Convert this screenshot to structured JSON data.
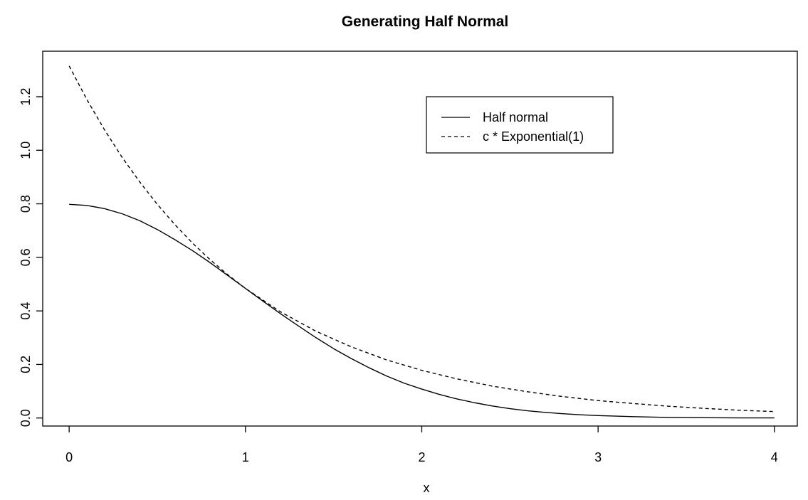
{
  "chart_data": {
    "type": "line",
    "title": "Generating Half Normal",
    "xlabel": "x",
    "ylabel": "",
    "xlim": [
      -0.15,
      4.13
    ],
    "ylim": [
      -0.03,
      1.37
    ],
    "xticks": [
      0,
      1,
      2,
      3,
      4
    ],
    "xtick_labels": [
      "0",
      "1",
      "2",
      "3",
      "4"
    ],
    "yticks": [
      0.0,
      0.2,
      0.4,
      0.6,
      0.8,
      1.0,
      1.2
    ],
    "ytick_labels": [
      "0.0",
      "0.2",
      "0.4",
      "0.6",
      "0.8",
      "1.0",
      "1.2"
    ],
    "grid": false,
    "legend_position": "top-right",
    "series": [
      {
        "name": "Half normal",
        "line_style": "solid",
        "color": "#000000",
        "x": [
          0,
          0.1,
          0.2,
          0.3,
          0.4,
          0.5,
          0.6,
          0.7,
          0.8,
          0.9,
          1.0,
          1.1,
          1.2,
          1.3,
          1.4,
          1.5,
          1.6,
          1.7,
          1.8,
          1.9,
          2.0,
          2.1,
          2.2,
          2.3,
          2.4,
          2.5,
          2.6,
          2.7,
          2.8,
          2.9,
          3.0,
          3.2,
          3.4,
          3.6,
          3.8,
          4.0
        ],
        "y": [
          0.798,
          0.794,
          0.782,
          0.763,
          0.737,
          0.704,
          0.666,
          0.625,
          0.58,
          0.532,
          0.484,
          0.436,
          0.389,
          0.344,
          0.3,
          0.259,
          0.222,
          0.188,
          0.157,
          0.13,
          0.108,
          0.088,
          0.071,
          0.057,
          0.045,
          0.035,
          0.027,
          0.021,
          0.016,
          0.012,
          0.009,
          0.005,
          0.002,
          0.001,
          0.0005,
          0.0003
        ]
      },
      {
        "name": "c * Exponential(1)",
        "line_style": "dashed",
        "color": "#000000",
        "x": [
          0,
          0.1,
          0.2,
          0.3,
          0.4,
          0.5,
          0.6,
          0.7,
          0.8,
          0.9,
          1.0,
          1.2,
          1.4,
          1.6,
          1.8,
          2.0,
          2.2,
          2.4,
          2.6,
          2.8,
          3.0,
          3.2,
          3.4,
          3.6,
          3.8,
          4.0
        ],
        "y": [
          1.315,
          1.19,
          1.077,
          0.974,
          0.882,
          0.798,
          0.722,
          0.653,
          0.591,
          0.535,
          0.484,
          0.396,
          0.324,
          0.266,
          0.217,
          0.178,
          0.146,
          0.119,
          0.098,
          0.08,
          0.065,
          0.054,
          0.044,
          0.036,
          0.029,
          0.024
        ]
      }
    ]
  }
}
